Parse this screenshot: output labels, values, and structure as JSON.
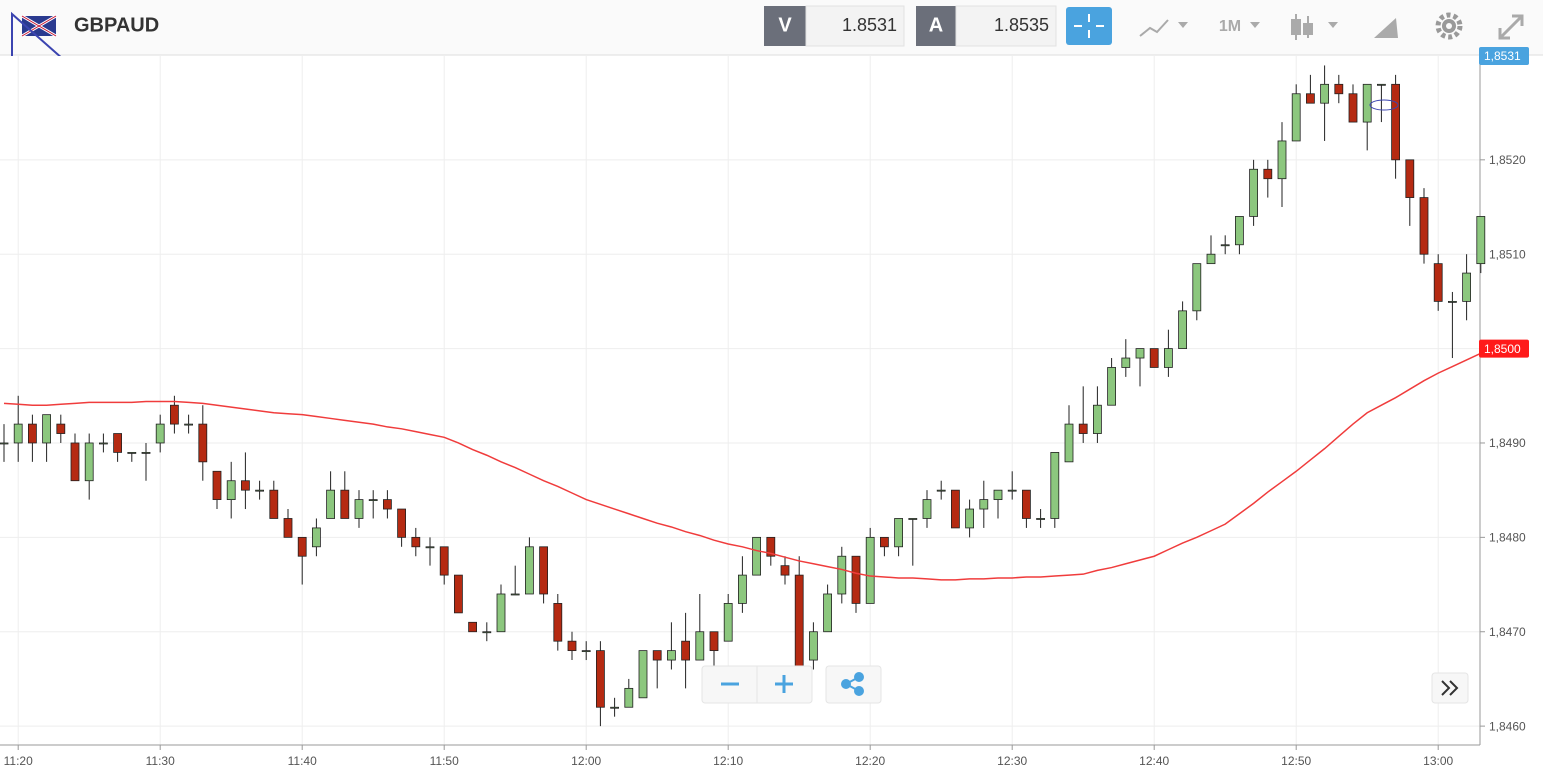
{
  "toolbar": {
    "symbol": "GBPAUD",
    "bid_label": "V",
    "bid": 1.8531,
    "ask_label": "A",
    "ask": 1.8535,
    "timeframe": "1M"
  },
  "chart_data": {
    "type": "candlestick",
    "categories": [
      null,
      "11:20",
      null,
      null,
      null,
      null,
      null,
      null,
      null,
      null,
      null,
      "11:30",
      null,
      null,
      null,
      null,
      null,
      null,
      null,
      null,
      null,
      "11:40",
      null,
      null,
      null,
      null,
      null,
      null,
      null,
      null,
      null,
      "11:50",
      null,
      null,
      null,
      null,
      null,
      null,
      null,
      null,
      null,
      "12:00",
      null,
      null,
      null,
      null,
      null,
      null,
      null,
      null,
      null,
      "12:10",
      null,
      null,
      null,
      null,
      null,
      null,
      null,
      null,
      null,
      "12:20",
      null,
      null,
      null,
      null,
      null,
      null,
      null,
      null,
      null,
      "12:30",
      null,
      null,
      null,
      null,
      null,
      null,
      null,
      null,
      null,
      "12:40",
      null,
      null,
      null,
      null,
      null,
      null,
      null,
      null,
      null,
      "12:50",
      null,
      null,
      null,
      null,
      null,
      null,
      null,
      null,
      null,
      "13:00",
      null,
      null,
      null
    ],
    "open": [
      1.849,
      1.849,
      1.8492,
      1.849,
      1.8492,
      1.849,
      1.8486,
      1.849,
      1.8491,
      1.8489,
      1.8489,
      1.849,
      1.8494,
      1.8492,
      1.8492,
      1.8487,
      1.8484,
      1.8486,
      1.8485,
      1.8485,
      1.8482,
      1.848,
      1.8479,
      1.8482,
      1.8485,
      1.8482,
      1.8484,
      1.8484,
      1.8483,
      1.848,
      1.8479,
      1.8479,
      1.8476,
      1.8471,
      1.847,
      1.847,
      1.8474,
      1.8474,
      1.8479,
      1.8473,
      1.8469,
      1.8468,
      1.8468,
      1.8462,
      1.8462,
      1.8463,
      1.8468,
      1.8467,
      1.8469,
      1.8467,
      1.847,
      1.8469,
      1.8473,
      1.8476,
      1.848,
      1.8477,
      1.8476,
      1.8467,
      1.847,
      1.8474,
      1.8478,
      1.8473,
      1.848,
      1.8479,
      1.8482,
      1.8482,
      1.8485,
      1.8485,
      1.8481,
      1.8483,
      1.8484,
      1.8485,
      1.8485,
      1.8482,
      1.8482,
      1.8488,
      1.8492,
      1.8491,
      1.8494,
      1.8498,
      1.8499,
      1.85,
      1.8498,
      1.85,
      1.8504,
      1.8509,
      1.8511,
      1.8511,
      1.8514,
      1.8519,
      1.8518,
      1.8522,
      1.8527,
      1.8526,
      1.8528,
      1.8527,
      1.8524,
      1.8528,
      1.8528,
      1.852,
      1.8516,
      1.8509,
      1.8505,
      1.8505,
      1.8509
    ],
    "high": [
      1.8492,
      1.8495,
      1.8493,
      1.8493,
      1.8493,
      1.8491,
      1.8491,
      1.8491,
      1.8491,
      1.8489,
      1.849,
      1.8493,
      1.8495,
      1.8493,
      1.8494,
      1.8487,
      1.8488,
      1.8489,
      1.8486,
      1.8486,
      1.8483,
      1.848,
      1.8482,
      1.8487,
      1.8487,
      1.8485,
      1.8485,
      1.8485,
      1.8483,
      1.8481,
      1.848,
      1.8479,
      1.8476,
      1.8471,
      1.8471,
      1.8475,
      1.8477,
      1.848,
      1.8479,
      1.8474,
      1.847,
      1.8469,
      1.8469,
      1.8463,
      1.8465,
      1.8468,
      1.8468,
      1.8471,
      1.8472,
      1.8474,
      1.847,
      1.8474,
      1.8478,
      1.848,
      1.848,
      1.8478,
      1.8478,
      1.8471,
      1.8475,
      1.8479,
      1.8478,
      1.8481,
      1.848,
      1.8482,
      1.8482,
      1.8485,
      1.8486,
      1.8485,
      1.8484,
      1.8486,
      1.8485,
      1.8487,
      1.8485,
      1.8483,
      1.8489,
      1.8494,
      1.8496,
      1.8496,
      1.8499,
      1.8501,
      1.85,
      1.85,
      1.8502,
      1.8505,
      1.8509,
      1.8512,
      1.8512,
      1.8514,
      1.852,
      1.852,
      1.8524,
      1.8528,
      1.8529,
      1.853,
      1.8529,
      1.8528,
      1.8528,
      1.8528,
      1.8529,
      1.852,
      1.8517,
      1.851,
      1.8506,
      1.851,
      1.8514
    ],
    "low": [
      1.8488,
      1.8488,
      1.8488,
      1.8488,
      1.849,
      1.8486,
      1.8484,
      1.8489,
      1.8488,
      1.8488,
      1.8486,
      1.8489,
      1.8491,
      1.8491,
      1.8486,
      1.8483,
      1.8482,
      1.8483,
      1.8484,
      1.8482,
      1.848,
      1.8475,
      1.8478,
      1.8482,
      1.8482,
      1.8481,
      1.8482,
      1.8482,
      1.8479,
      1.8478,
      1.8477,
      1.8475,
      1.8472,
      1.847,
      1.8469,
      1.847,
      1.8474,
      1.8474,
      1.8473,
      1.8468,
      1.8467,
      1.8467,
      1.846,
      1.8461,
      1.8462,
      1.8463,
      1.8464,
      1.8466,
      1.8464,
      1.8467,
      1.8466,
      1.8469,
      1.8472,
      1.8476,
      1.8477,
      1.8475,
      1.8466,
      1.8466,
      1.847,
      1.8473,
      1.8472,
      1.8473,
      1.8478,
      1.8478,
      1.8477,
      1.8481,
      1.8484,
      1.8481,
      1.848,
      1.8481,
      1.8482,
      1.8484,
      1.8481,
      1.8481,
      1.8481,
      1.8488,
      1.849,
      1.849,
      1.8494,
      1.8497,
      1.8496,
      1.8498,
      1.8497,
      1.85,
      1.8503,
      1.8509,
      1.851,
      1.851,
      1.8513,
      1.8516,
      1.8515,
      1.8522,
      1.8526,
      1.8522,
      1.8526,
      1.8524,
      1.8521,
      1.8524,
      1.8518,
      1.8513,
      1.8509,
      1.8504,
      1.8499,
      1.8503,
      1.8508
    ],
    "close": [
      1.849,
      1.8492,
      1.849,
      1.8493,
      1.8491,
      1.8486,
      1.849,
      1.849,
      1.8489,
      1.8489,
      1.8489,
      1.8492,
      1.8492,
      1.8492,
      1.8488,
      1.8484,
      1.8486,
      1.8485,
      1.8485,
      1.8482,
      1.848,
      1.8478,
      1.8481,
      1.8485,
      1.8482,
      1.8484,
      1.8484,
      1.8483,
      1.848,
      1.8479,
      1.8479,
      1.8476,
      1.8472,
      1.847,
      1.847,
      1.8474,
      1.8474,
      1.8479,
      1.8474,
      1.8469,
      1.8468,
      1.8468,
      1.8462,
      1.8462,
      1.8464,
      1.8468,
      1.8467,
      1.8468,
      1.8467,
      1.847,
      1.8468,
      1.8473,
      1.8476,
      1.848,
      1.8478,
      1.8476,
      1.8466,
      1.847,
      1.8474,
      1.8478,
      1.8473,
      1.848,
      1.8479,
      1.8482,
      1.8482,
      1.8484,
      1.8485,
      1.8481,
      1.8483,
      1.8484,
      1.8485,
      1.8485,
      1.8482,
      1.8482,
      1.8489,
      1.8492,
      1.8491,
      1.8494,
      1.8498,
      1.8499,
      1.85,
      1.8498,
      1.85,
      1.8504,
      1.8509,
      1.851,
      1.8511,
      1.8514,
      1.8519,
      1.8518,
      1.8522,
      1.8527,
      1.8526,
      1.8528,
      1.8527,
      1.8524,
      1.8528,
      1.8528,
      1.852,
      1.8516,
      1.851,
      1.8505,
      1.8505,
      1.8508,
      1.8514
    ],
    "up_color": "#8cc77e",
    "down_color": "#b52a12",
    "line_color": "#f03c3c",
    "line_values": [
      1.84942,
      1.84941,
      1.8494,
      1.8494,
      1.84941,
      1.84942,
      1.84943,
      1.84943,
      1.84943,
      1.84943,
      1.84944,
      1.84944,
      1.84944,
      1.84943,
      1.84942,
      1.8494,
      1.84938,
      1.84936,
      1.84934,
      1.84932,
      1.84931,
      1.8493,
      1.84928,
      1.84926,
      1.84924,
      1.84922,
      1.8492,
      1.84917,
      1.84915,
      1.84912,
      1.84909,
      1.84906,
      1.849,
      1.84893,
      1.84887,
      1.8488,
      1.84874,
      1.84867,
      1.8486,
      1.84854,
      1.84847,
      1.8484,
      1.84835,
      1.8483,
      1.84825,
      1.8482,
      1.84815,
      1.84811,
      1.84806,
      1.84802,
      1.84797,
      1.84793,
      1.8479,
      1.84786,
      1.84783,
      1.84779,
      1.84775,
      1.84772,
      1.84769,
      1.84766,
      1.84762,
      1.84759,
      1.84758,
      1.84757,
      1.84757,
      1.84756,
      1.84755,
      1.84755,
      1.84756,
      1.84756,
      1.84757,
      1.84757,
      1.84758,
      1.84758,
      1.84759,
      1.8476,
      1.84761,
      1.84765,
      1.84768,
      1.84772,
      1.84776,
      1.8478,
      1.84787,
      1.84794,
      1.848,
      1.84807,
      1.84814,
      1.84825,
      1.84836,
      1.84848,
      1.84859,
      1.8487,
      1.84882,
      1.84894,
      1.84907,
      1.8492,
      1.84932,
      1.8494,
      1.84948,
      1.84957,
      1.84966,
      1.84974,
      1.84981,
      1.84988,
      1.84995
    ],
    "ylim": [
      1.8458,
      1.8531
    ],
    "yticks": [
      {
        "value": 1.846,
        "label": "1,8460"
      },
      {
        "value": 1.847,
        "label": "1,8470"
      },
      {
        "value": 1.848,
        "label": "1,8480"
      },
      {
        "value": 1.849,
        "label": "1,8490"
      },
      {
        "value": 1.85,
        "label": "1,8500"
      },
      {
        "value": 1.851,
        "label": "1,8510"
      },
      {
        "value": 1.852,
        "label": "1,8520"
      }
    ],
    "price_tags": [
      {
        "value": 1.8531,
        "label": "1,8531",
        "color": "#4aa3df"
      },
      {
        "value": 1.85,
        "label": "1,8500",
        "color": "#ff1a1a"
      }
    ],
    "grid": true
  }
}
